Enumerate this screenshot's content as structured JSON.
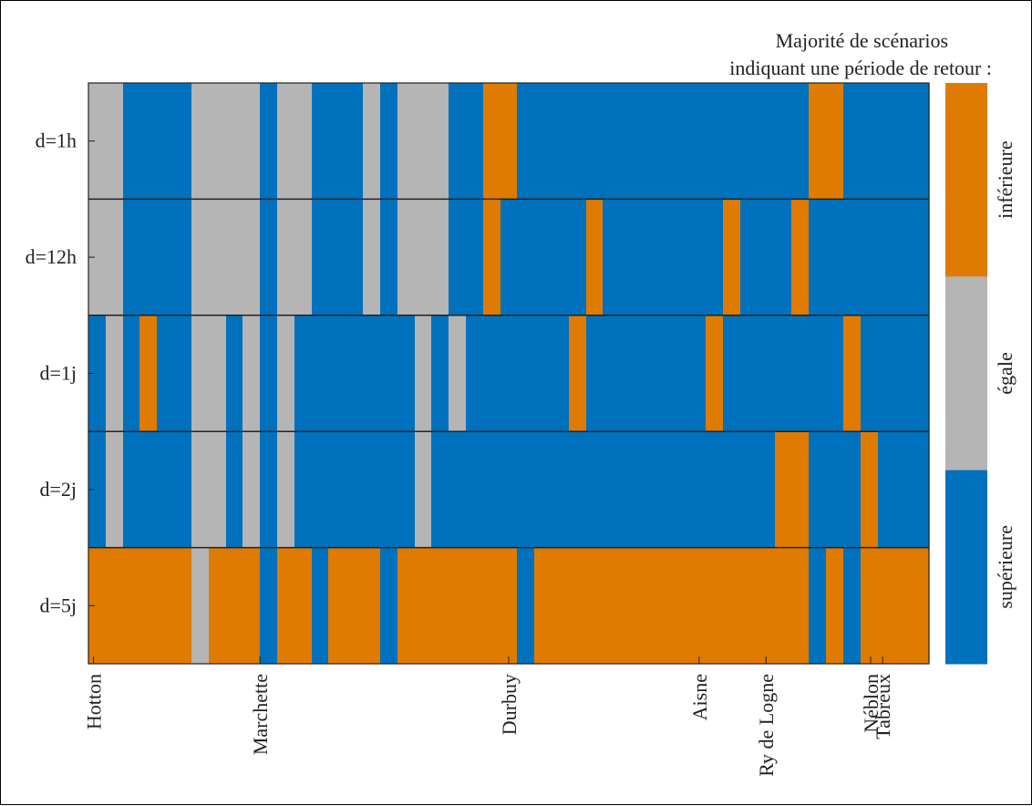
{
  "chart_data": {
    "type": "heatmap",
    "legend": {
      "title_line1": "Majorité de scénarios",
      "title_line2": "indiquant une période de retour :",
      "entries": [
        {
          "key": "inf",
          "label": "inférieure",
          "color": "#DF7B00"
        },
        {
          "key": "eg",
          "label": "égale",
          "color": "#B5B5B5"
        },
        {
          "key": "sup",
          "label": "supérieure",
          "color": "#0071BD"
        }
      ],
      "placement": "right"
    },
    "rows": [
      {
        "label": "d=1h",
        "cells": [
          "eg",
          "eg",
          "sup",
          "sup",
          "sup",
          "sup",
          "eg",
          "eg",
          "eg",
          "eg",
          "sup",
          "eg",
          "eg",
          "sup",
          "sup",
          "sup",
          "eg",
          "sup",
          "eg",
          "eg",
          "eg",
          "sup",
          "sup",
          "inf",
          "inf",
          "sup",
          "sup",
          "sup",
          "sup",
          "sup",
          "sup",
          "sup",
          "sup",
          "sup",
          "sup",
          "sup",
          "sup",
          "sup",
          "sup",
          "sup",
          "sup",
          "sup",
          "inf",
          "inf",
          "sup",
          "sup",
          "sup",
          "sup",
          "sup"
        ]
      },
      {
        "label": "d=12h",
        "cells": [
          "eg",
          "eg",
          "sup",
          "sup",
          "sup",
          "sup",
          "eg",
          "eg",
          "eg",
          "eg",
          "sup",
          "eg",
          "eg",
          "sup",
          "sup",
          "sup",
          "eg",
          "sup",
          "eg",
          "eg",
          "eg",
          "sup",
          "sup",
          "inf",
          "sup",
          "sup",
          "sup",
          "sup",
          "sup",
          "inf",
          "sup",
          "sup",
          "sup",
          "sup",
          "sup",
          "sup",
          "sup",
          "inf",
          "sup",
          "sup",
          "sup",
          "inf",
          "sup",
          "sup",
          "sup",
          "sup",
          "sup",
          "sup",
          "sup"
        ]
      },
      {
        "label": "d=1j",
        "cells": [
          "sup",
          "eg",
          "sup",
          "inf",
          "sup",
          "sup",
          "eg",
          "eg",
          "sup",
          "eg",
          "sup",
          "eg",
          "sup",
          "sup",
          "sup",
          "sup",
          "sup",
          "sup",
          "sup",
          "eg",
          "sup",
          "eg",
          "sup",
          "sup",
          "sup",
          "sup",
          "sup",
          "sup",
          "inf",
          "sup",
          "sup",
          "sup",
          "sup",
          "sup",
          "sup",
          "sup",
          "inf",
          "sup",
          "sup",
          "sup",
          "sup",
          "sup",
          "sup",
          "sup",
          "inf",
          "sup",
          "sup",
          "sup",
          "sup"
        ]
      },
      {
        "label": "d=2j",
        "cells": [
          "sup",
          "eg",
          "sup",
          "sup",
          "sup",
          "sup",
          "eg",
          "eg",
          "sup",
          "eg",
          "sup",
          "eg",
          "sup",
          "sup",
          "sup",
          "sup",
          "sup",
          "sup",
          "sup",
          "eg",
          "sup",
          "sup",
          "sup",
          "sup",
          "sup",
          "sup",
          "sup",
          "sup",
          "sup",
          "sup",
          "sup",
          "sup",
          "sup",
          "sup",
          "sup",
          "sup",
          "sup",
          "sup",
          "sup",
          "sup",
          "inf",
          "inf",
          "sup",
          "sup",
          "sup",
          "inf",
          "sup",
          "sup",
          "sup"
        ]
      },
      {
        "label": "d=5j",
        "cells": [
          "inf",
          "inf",
          "inf",
          "inf",
          "inf",
          "inf",
          "eg",
          "inf",
          "inf",
          "inf",
          "sup",
          "inf",
          "inf",
          "sup",
          "inf",
          "inf",
          "inf",
          "sup",
          "inf",
          "inf",
          "inf",
          "inf",
          "inf",
          "inf",
          "inf",
          "sup",
          "inf",
          "inf",
          "inf",
          "inf",
          "inf",
          "inf",
          "inf",
          "inf",
          "inf",
          "inf",
          "inf",
          "inf",
          "inf",
          "inf",
          "inf",
          "inf",
          "sup",
          "inf",
          "sup",
          "inf",
          "inf",
          "inf",
          "inf"
        ]
      }
    ],
    "x_ticks": [
      {
        "label": "Hotton",
        "index": 0.3
      },
      {
        "label": "Marchette",
        "index": 10.0
      },
      {
        "label": "Durbuy",
        "index": 24.5
      },
      {
        "label": "Aisne",
        "index": 35.6
      },
      {
        "label": "Ry de Logne",
        "index": 39.5
      },
      {
        "label": "Néblon",
        "index": 45.6
      },
      {
        "label": "Tabreux",
        "index": 46.3
      }
    ],
    "n_columns": 49
  }
}
